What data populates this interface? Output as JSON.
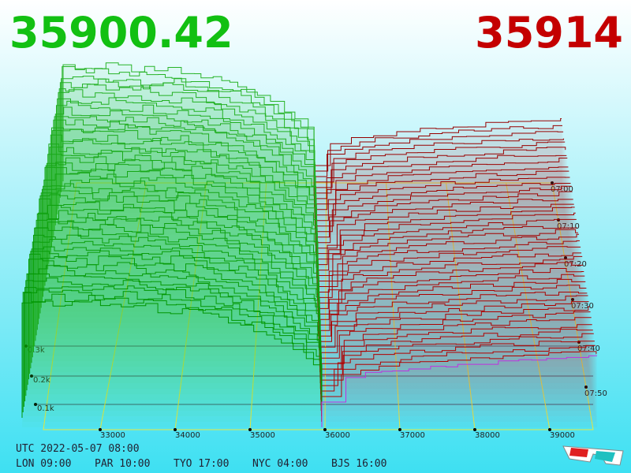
{
  "header": {
    "bid": "35900.42",
    "ask": "35914"
  },
  "price_axis": {
    "ticks": [
      "33000",
      "34000",
      "35000",
      "36000",
      "37000",
      "38000",
      "39000"
    ]
  },
  "depth_axis": {
    "ticks": [
      "0.1k",
      "0.2k",
      "0.3k"
    ]
  },
  "time_axis": {
    "ticks": [
      "07:00",
      "07:10",
      "07:20",
      "07:30",
      "07:40",
      "07:50"
    ]
  },
  "footer": {
    "utc": "UTC 2022-05-07 08:00",
    "zones": [
      "LON 09:00",
      "PAR 10:00",
      "TYO 17:00",
      "NYC 04:00",
      "BJS 16:00"
    ]
  }
}
